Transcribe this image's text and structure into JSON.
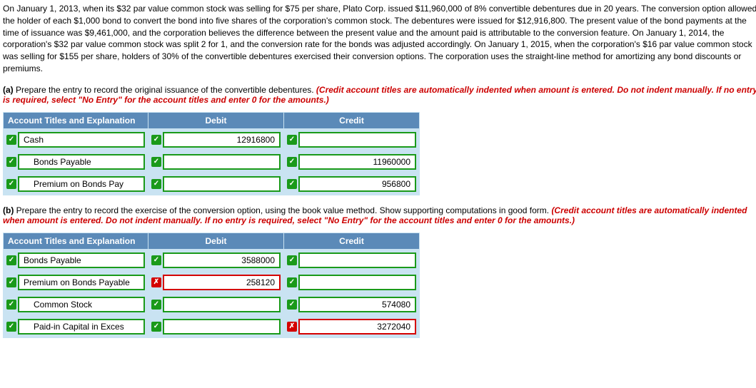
{
  "problem_text": "On January 1, 2013, when its $32 par value common stock was selling for $75 per share, Plato Corp. issued $11,960,000 of 8% convertible debentures due in 20 years. The conversion option allowed the holder of each $1,000 bond to convert the bond into five shares of the corporation's common stock. The debentures were issued for $12,916,800. The present value of the bond payments at the time of issuance was $9,461,000, and the corporation believes the difference between the present value and the amount paid is attributable to the conversion feature. On January 1, 2014, the corporation's $32 par value common stock was split 2 for 1, and the conversion rate for the bonds was adjusted accordingly. On January 1, 2015, when the corporation's $16 par value common stock was selling for $155 per share, holders of 30% of the convertible debentures exercised their conversion options. The corporation uses the straight-line method for amortizing any bond discounts or premiums.",
  "part_a": {
    "label": "(a) ",
    "text": "Prepare the entry to record the original issuance of the convertible debentures. ",
    "red": "(Credit account titles are automatically indented when amount is entered. Do not indent manually. If no entry is required, select \"No Entry\" for the account titles and enter 0 for the amounts.)"
  },
  "part_b": {
    "label": "(b) ",
    "text": "Prepare the entry to record the exercise of the conversion option, using the book value method. Show supporting computations in good form. ",
    "red": "(Credit account titles are automatically indented when amount is entered. Do not indent manually. If no entry is required, select \"No Entry\" for the account titles and enter 0 for the amounts.)"
  },
  "headers": {
    "account": "Account Titles and Explanation",
    "debit": "Debit",
    "credit": "Credit"
  },
  "table_a": [
    {
      "acct": {
        "v": "Cash",
        "ok": true,
        "indent": 0
      },
      "debit": {
        "v": "12916800",
        "ok": true
      },
      "credit": {
        "v": "",
        "ok": true
      }
    },
    {
      "acct": {
        "v": "Bonds Payable",
        "ok": true,
        "indent": 1
      },
      "debit": {
        "v": "",
        "ok": true
      },
      "credit": {
        "v": "11960000",
        "ok": true
      }
    },
    {
      "acct": {
        "v": "Premium on Bonds Pay",
        "ok": true,
        "indent": 1
      },
      "debit": {
        "v": "",
        "ok": true
      },
      "credit": {
        "v": "956800",
        "ok": true
      }
    }
  ],
  "table_b": [
    {
      "acct": {
        "v": "Bonds Payable",
        "ok": true,
        "indent": 0
      },
      "debit": {
        "v": "3588000",
        "ok": true
      },
      "credit": {
        "v": "",
        "ok": true
      }
    },
    {
      "acct": {
        "v": "Premium on Bonds Payable",
        "ok": true,
        "indent": 0
      },
      "debit": {
        "v": "258120",
        "ok": false
      },
      "credit": {
        "v": "",
        "ok": true
      }
    },
    {
      "acct": {
        "v": "Common Stock",
        "ok": true,
        "indent": 1
      },
      "debit": {
        "v": "",
        "ok": true
      },
      "credit": {
        "v": "574080",
        "ok": true
      }
    },
    {
      "acct": {
        "v": "Paid-in Capital in Exces",
        "ok": true,
        "indent": 1
      },
      "debit": {
        "v": "",
        "ok": true
      },
      "credit": {
        "v": "3272040",
        "ok": false
      }
    }
  ],
  "marks": {
    "correct": "✓",
    "wrong": "✗"
  }
}
